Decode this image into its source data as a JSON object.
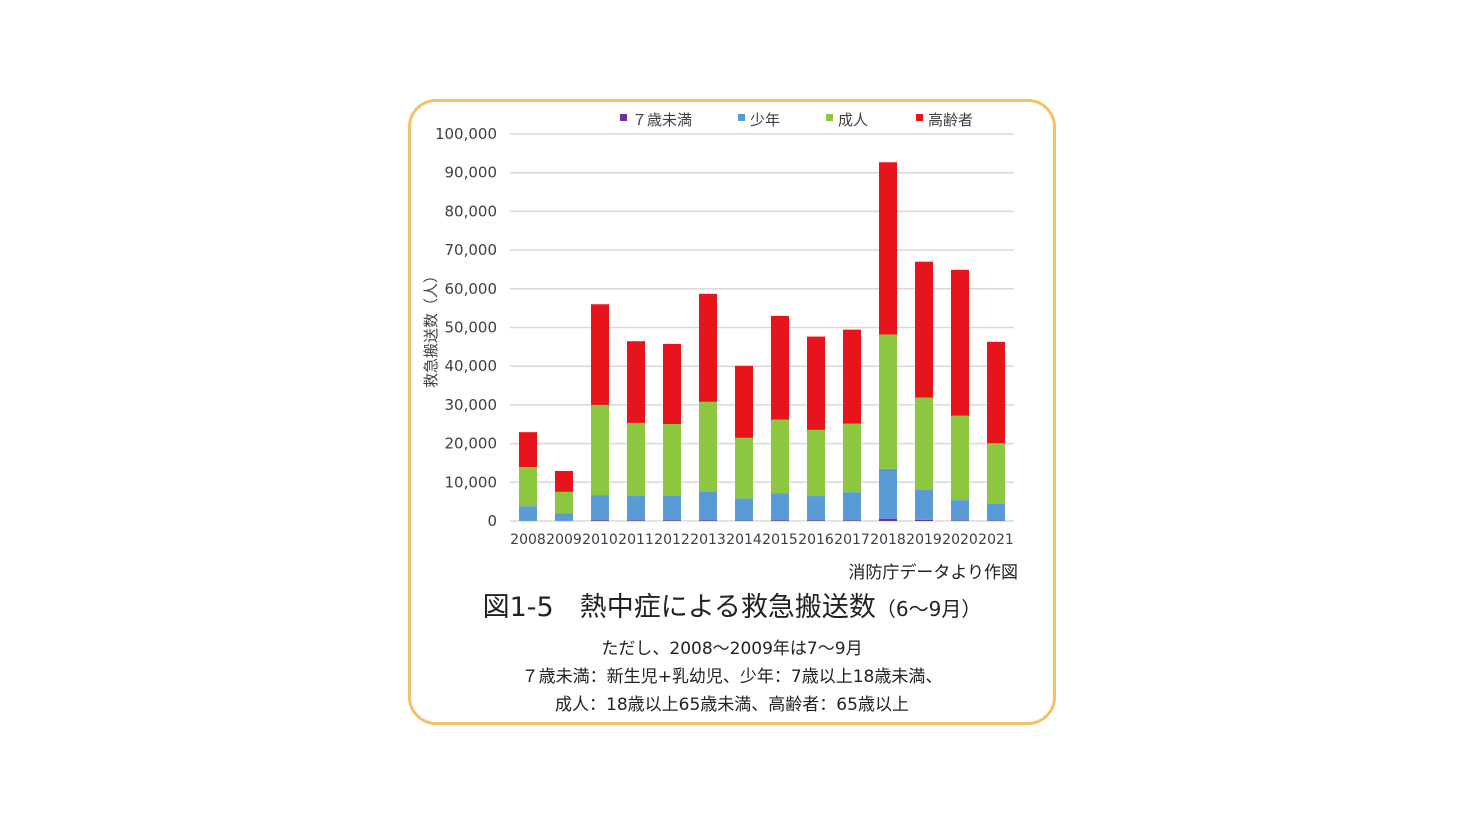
{
  "colors": {
    "frame_border": "#f5c06a",
    "grid": "#d9d9d9",
    "under7": "#7030a0",
    "youth": "#5b9bd5",
    "adult": "#8dc63f",
    "elderly": "#e8141b"
  },
  "chart_data": {
    "type": "bar",
    "stacked": true,
    "title": "",
    "xlabel": "",
    "ylabel": "救急搬送数（人）",
    "ylim": [
      0,
      100000
    ],
    "yticks": [
      0,
      10000,
      20000,
      30000,
      40000,
      50000,
      60000,
      70000,
      80000,
      90000,
      100000
    ],
    "ytick_labels": [
      "0",
      "10,000",
      "20,000",
      "30,000",
      "40,000",
      "50,000",
      "60,000",
      "70,000",
      "80,000",
      "90,000",
      "100,000"
    ],
    "grid": true,
    "legend_position": "top",
    "categories": [
      "2008",
      "2009",
      "2010",
      "2011",
      "2012",
      "2013",
      "2014",
      "2015",
      "2016",
      "2017",
      "2018",
      "2019",
      "2020",
      "2021"
    ],
    "series": [
      {
        "name": "７歳未満",
        "color": "#7030a0",
        "values": [
          50,
          30,
          200,
          150,
          150,
          200,
          100,
          200,
          150,
          150,
          600,
          300,
          100,
          100
        ]
      },
      {
        "name": "少年",
        "color": "#5b9bd5",
        "values": [
          3800,
          1900,
          6500,
          6300,
          6500,
          7400,
          5700,
          7000,
          6300,
          7300,
          12900,
          7800,
          5300,
          4400
        ]
      },
      {
        "name": "成人",
        "color": "#8dc63f",
        "values": [
          10100,
          5600,
          23300,
          18900,
          18400,
          23200,
          15700,
          19000,
          17100,
          17700,
          34700,
          23800,
          21800,
          15600
        ]
      },
      {
        "name": "高齢者",
        "color": "#e8141b",
        "values": [
          9000,
          5400,
          26000,
          21100,
          20700,
          27900,
          18600,
          26800,
          24100,
          24300,
          44500,
          35100,
          37700,
          26200
        ]
      }
    ]
  },
  "caption": {
    "source": "消防庁データより作図",
    "figure_number": "図1-5",
    "figure_title": "熱中症による救急搬送数",
    "figure_subtitle": "（6～9月）",
    "note_line1": "ただし、2008～2009年は7～9月",
    "note_line2": "７歳未満：新生児+乳幼児、少年：7歳以上18歳未満、",
    "note_line3": "成人：18歳以上65歳未満、高齢者：65歳以上"
  }
}
